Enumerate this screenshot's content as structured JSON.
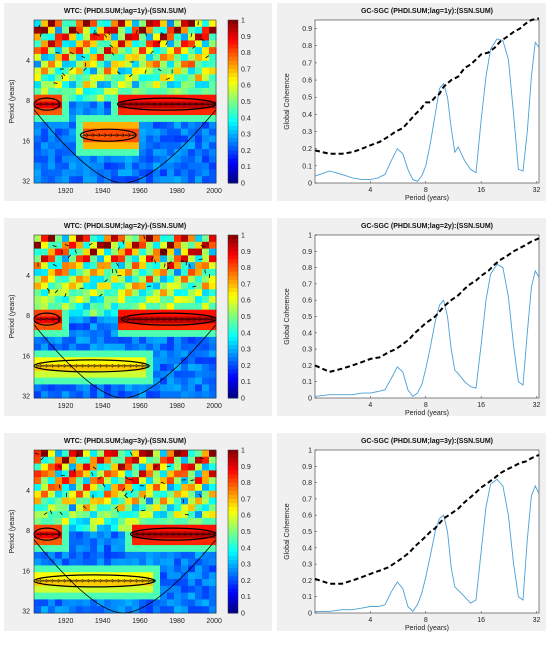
{
  "figure": {
    "wtc_rows": [
      {
        "title": "WTC: (PHDI.SUM;lag=1y)-(SSN.SUM)"
      },
      {
        "title": "WTC: (PHDI.SUM;lag=2y)-(SSN.SUM)"
      },
      {
        "title": "WTC: (PHDI.SUM;lag=3y)-(SSN.SUM)"
      }
    ],
    "gc_rows": [
      {
        "title": "GC-SGC (PHDI.SUM;lag=1y):(SSN.SUM)"
      },
      {
        "title": "GC-SGC (PHDI.SUM;lag=2y):(SSN.SUM)"
      },
      {
        "title": "GC-SGC (PHDI.SUM;lag=3y):(SSN.SUM)"
      }
    ]
  },
  "chart_data": [
    {
      "type": "heatmap",
      "title": "WTC: (PHDI.SUM;lag=1y)-(SSN.SUM)",
      "ylabel": "Period (years)",
      "x_ticks": [
        "1920",
        "1940",
        "1960",
        "1980",
        "2000"
      ],
      "y_ticks": [
        "4",
        "8",
        "16",
        "32"
      ],
      "colorbar_ticks": [
        "0",
        "0.1",
        "0.2",
        "0.3",
        "0.4",
        "0.5",
        "0.6",
        "0.7",
        "0.8",
        "0.9",
        "1"
      ],
      "xlim": [
        1903,
        2001
      ],
      "ylim_period": [
        2,
        33
      ],
      "colorbar_range": [
        0,
        1
      ],
      "colormap": "jet",
      "high_coherence_bands": [
        {
          "period": 8.5,
          "x_from": 1903,
          "x_to": 1917,
          "value": 0.9
        },
        {
          "period": 8.5,
          "x_from": 1948,
          "x_to": 2001,
          "value": 0.95
        },
        {
          "period": 14.5,
          "x_from": 1928,
          "x_to": 1958,
          "value": 0.85
        }
      ]
    },
    {
      "type": "line",
      "title": "GC-SGC (PHDI.SUM;lag=1y):(SSN.SUM)",
      "xlabel": "Period (years)",
      "ylabel": "Global Coherence",
      "x_scale": "log2",
      "x_ticks": [
        "4",
        "8",
        "16",
        "32"
      ],
      "y_ticks": [
        "0",
        "0.1",
        "0.2",
        "0.3",
        "0.4",
        "0.5",
        "0.6",
        "0.7",
        "0.8",
        "0.9"
      ],
      "ylim": [
        0,
        0.95
      ],
      "xlim": [
        2,
        33
      ],
      "grid": false,
      "series": [
        {
          "style": "solid",
          "color": "#4a9fd6",
          "x": [
            2,
            2.4,
            2.8,
            3.2,
            3.6,
            4,
            4.4,
            4.8,
            5.2,
            5.6,
            6,
            6.4,
            6.8,
            7.2,
            7.6,
            8,
            8.5,
            9,
            9.5,
            10,
            10.5,
            11,
            11.5,
            12,
            13,
            14,
            15,
            16,
            17,
            18,
            19.5,
            21,
            22.5,
            24,
            25.5,
            27,
            28.5,
            30,
            31.5,
            33
          ],
          "y": [
            0.04,
            0.07,
            0.05,
            0.03,
            0.02,
            0.02,
            0.03,
            0.05,
            0.13,
            0.2,
            0.17,
            0.08,
            0.02,
            0.01,
            0.04,
            0.1,
            0.24,
            0.4,
            0.55,
            0.58,
            0.5,
            0.32,
            0.18,
            0.21,
            0.13,
            0.08,
            0.06,
            0.37,
            0.62,
            0.78,
            0.84,
            0.83,
            0.72,
            0.4,
            0.08,
            0.07,
            0.3,
            0.62,
            0.82,
            0.79
          ]
        },
        {
          "style": "dashed",
          "color": "#000000",
          "x": [
            2,
            2.4,
            2.8,
            3.2,
            3.6,
            4,
            4.5,
            5,
            5.5,
            6,
            6.5,
            7,
            7.5,
            8,
            8.5,
            9,
            9.5,
            10,
            11,
            12,
            13,
            14,
            15,
            16,
            17.5,
            19,
            20.5,
            22,
            24,
            26,
            28,
            30,
            33
          ],
          "y": [
            0.19,
            0.17,
            0.17,
            0.18,
            0.2,
            0.22,
            0.24,
            0.27,
            0.3,
            0.32,
            0.36,
            0.4,
            0.43,
            0.47,
            0.47,
            0.5,
            0.52,
            0.56,
            0.6,
            0.62,
            0.67,
            0.69,
            0.72,
            0.75,
            0.76,
            0.79,
            0.83,
            0.85,
            0.88,
            0.9,
            0.93,
            0.95,
            0.96
          ]
        }
      ]
    },
    {
      "type": "heatmap",
      "title": "WTC: (PHDI.SUM;lag=2y)-(SSN.SUM)",
      "ylabel": "Period (years)",
      "x_ticks": [
        "1920",
        "1940",
        "1960",
        "1980",
        "2000"
      ],
      "y_ticks": [
        "4",
        "8",
        "16",
        "32"
      ],
      "colorbar_ticks": [
        "0",
        "0.1",
        "0.2",
        "0.3",
        "0.4",
        "0.5",
        "0.6",
        "0.7",
        "0.8",
        "0.9",
        "1"
      ],
      "xlim": [
        1903,
        2001
      ],
      "ylim_period": [
        2,
        33
      ],
      "colorbar_range": [
        0,
        1
      ],
      "colormap": "jet",
      "high_coherence_bands": [
        {
          "period": 8.5,
          "x_from": 1903,
          "x_to": 1917,
          "value": 0.9
        },
        {
          "period": 8.5,
          "x_from": 1950,
          "x_to": 2001,
          "value": 0.95
        },
        {
          "period": 19,
          "x_from": 1903,
          "x_to": 1965,
          "value": 0.7
        }
      ]
    },
    {
      "type": "line",
      "title": "GC-SGC (PHDI.SUM;lag=2y):(SSN.SUM)",
      "xlabel": "Period (years)",
      "ylabel": "Global Coherence",
      "x_scale": "log2",
      "x_ticks": [
        "4",
        "8",
        "16",
        "32"
      ],
      "y_ticks": [
        "0",
        "0.1",
        "0.2",
        "0.3",
        "0.4",
        "0.5",
        "0.6",
        "0.7",
        "0.8",
        "0.9",
        "1"
      ],
      "ylim": [
        0,
        1
      ],
      "xlim": [
        2,
        33
      ],
      "grid": false,
      "series": [
        {
          "style": "solid",
          "color": "#4a9fd6",
          "x": [
            2,
            2.4,
            2.8,
            3.2,
            3.6,
            4,
            4.4,
            4.8,
            5.2,
            5.6,
            6,
            6.4,
            6.8,
            7.2,
            7.6,
            8,
            8.5,
            9,
            9.5,
            10,
            10.5,
            11,
            11.5,
            12,
            13,
            14,
            15,
            16,
            17,
            18,
            19.5,
            21,
            22.5,
            24,
            25.5,
            27,
            28.5,
            30,
            31.5,
            33
          ],
          "y": [
            0.01,
            0.02,
            0.02,
            0.02,
            0.03,
            0.03,
            0.04,
            0.05,
            0.12,
            0.19,
            0.16,
            0.05,
            0.01,
            0.03,
            0.08,
            0.18,
            0.32,
            0.47,
            0.57,
            0.6,
            0.5,
            0.3,
            0.17,
            0.15,
            0.1,
            0.07,
            0.06,
            0.33,
            0.6,
            0.76,
            0.82,
            0.8,
            0.62,
            0.32,
            0.1,
            0.08,
            0.4,
            0.68,
            0.78,
            0.74
          ]
        },
        {
          "style": "dashed",
          "color": "#000000",
          "x": [
            2,
            2.4,
            2.8,
            3.2,
            3.6,
            4,
            4.5,
            5,
            5.5,
            6,
            6.5,
            7,
            7.5,
            8,
            8.5,
            9,
            9.5,
            10,
            11,
            12,
            13,
            14,
            15,
            16,
            17.5,
            19,
            20.5,
            22,
            24,
            26,
            28,
            30,
            33
          ],
          "y": [
            0.2,
            0.16,
            0.18,
            0.2,
            0.22,
            0.24,
            0.25,
            0.28,
            0.3,
            0.33,
            0.36,
            0.4,
            0.43,
            0.46,
            0.48,
            0.5,
            0.53,
            0.56,
            0.6,
            0.63,
            0.67,
            0.7,
            0.72,
            0.75,
            0.78,
            0.82,
            0.85,
            0.87,
            0.9,
            0.92,
            0.94,
            0.96,
            0.98
          ]
        }
      ]
    },
    {
      "type": "heatmap",
      "title": "WTC: (PHDI.SUM;lag=3y)-(SSN.SUM)",
      "ylabel": "Period (years)",
      "x_ticks": [
        "1920",
        "1940",
        "1960",
        "1980",
        "2000"
      ],
      "y_ticks": [
        "4",
        "8",
        "16",
        "32"
      ],
      "colorbar_ticks": [
        "0",
        "0.1",
        "0.2",
        "0.3",
        "0.4",
        "0.5",
        "0.6",
        "0.7",
        "0.8",
        "0.9",
        "1"
      ],
      "xlim": [
        1903,
        2001
      ],
      "ylim_period": [
        2,
        33
      ],
      "colorbar_range": [
        0,
        1
      ],
      "colormap": "jet",
      "high_coherence_bands": [
        {
          "period": 8.5,
          "x_from": 1903,
          "x_to": 1917,
          "value": 0.9
        },
        {
          "period": 8.5,
          "x_from": 1955,
          "x_to": 2001,
          "value": 0.95
        },
        {
          "period": 19,
          "x_from": 1903,
          "x_to": 1968,
          "value": 0.7
        }
      ]
    },
    {
      "type": "line",
      "title": "GC-SGC (PHDI.SUM;lag=3y):(SSN.SUM)",
      "xlabel": "Period (years)",
      "ylabel": "Global Coherence",
      "x_scale": "log2",
      "x_ticks": [
        "4",
        "8",
        "16",
        "32"
      ],
      "y_ticks": [
        "0",
        "0.1",
        "0.2",
        "0.3",
        "0.4",
        "0.5",
        "0.6",
        "0.7",
        "0.8",
        "0.9",
        "1"
      ],
      "ylim": [
        0,
        1
      ],
      "xlim": [
        2,
        33
      ],
      "grid": false,
      "series": [
        {
          "style": "solid",
          "color": "#4a9fd6",
          "x": [
            2,
            2.4,
            2.8,
            3.2,
            3.6,
            4,
            4.4,
            4.8,
            5.2,
            5.6,
            6,
            6.4,
            6.8,
            7.2,
            7.6,
            8,
            8.5,
            9,
            9.5,
            10,
            10.5,
            11,
            11.5,
            12,
            13,
            14,
            15,
            16,
            17,
            18,
            19.5,
            21,
            22.5,
            24,
            25.5,
            27,
            28.5,
            30,
            31.5,
            33
          ],
          "y": [
            0.01,
            0.01,
            0.02,
            0.02,
            0.03,
            0.04,
            0.04,
            0.05,
            0.13,
            0.19,
            0.15,
            0.04,
            0.01,
            0.05,
            0.12,
            0.22,
            0.36,
            0.5,
            0.58,
            0.6,
            0.5,
            0.28,
            0.16,
            0.14,
            0.1,
            0.06,
            0.08,
            0.38,
            0.65,
            0.79,
            0.82,
            0.78,
            0.6,
            0.3,
            0.1,
            0.08,
            0.45,
            0.72,
            0.78,
            0.73
          ]
        },
        {
          "style": "dashed",
          "color": "#000000",
          "x": [
            2,
            2.4,
            2.8,
            3.2,
            3.6,
            4,
            4.5,
            5,
            5.5,
            6,
            6.5,
            7,
            7.5,
            8,
            8.5,
            9,
            9.5,
            10,
            11,
            12,
            13,
            14,
            15,
            16,
            17.5,
            19,
            20.5,
            22,
            24,
            26,
            28,
            30,
            33
          ],
          "y": [
            0.21,
            0.18,
            0.18,
            0.2,
            0.22,
            0.24,
            0.26,
            0.28,
            0.31,
            0.34,
            0.37,
            0.41,
            0.44,
            0.47,
            0.5,
            0.52,
            0.55,
            0.58,
            0.61,
            0.64,
            0.68,
            0.71,
            0.74,
            0.77,
            0.8,
            0.83,
            0.86,
            0.88,
            0.9,
            0.92,
            0.93,
            0.95,
            0.97
          ]
        }
      ]
    }
  ]
}
